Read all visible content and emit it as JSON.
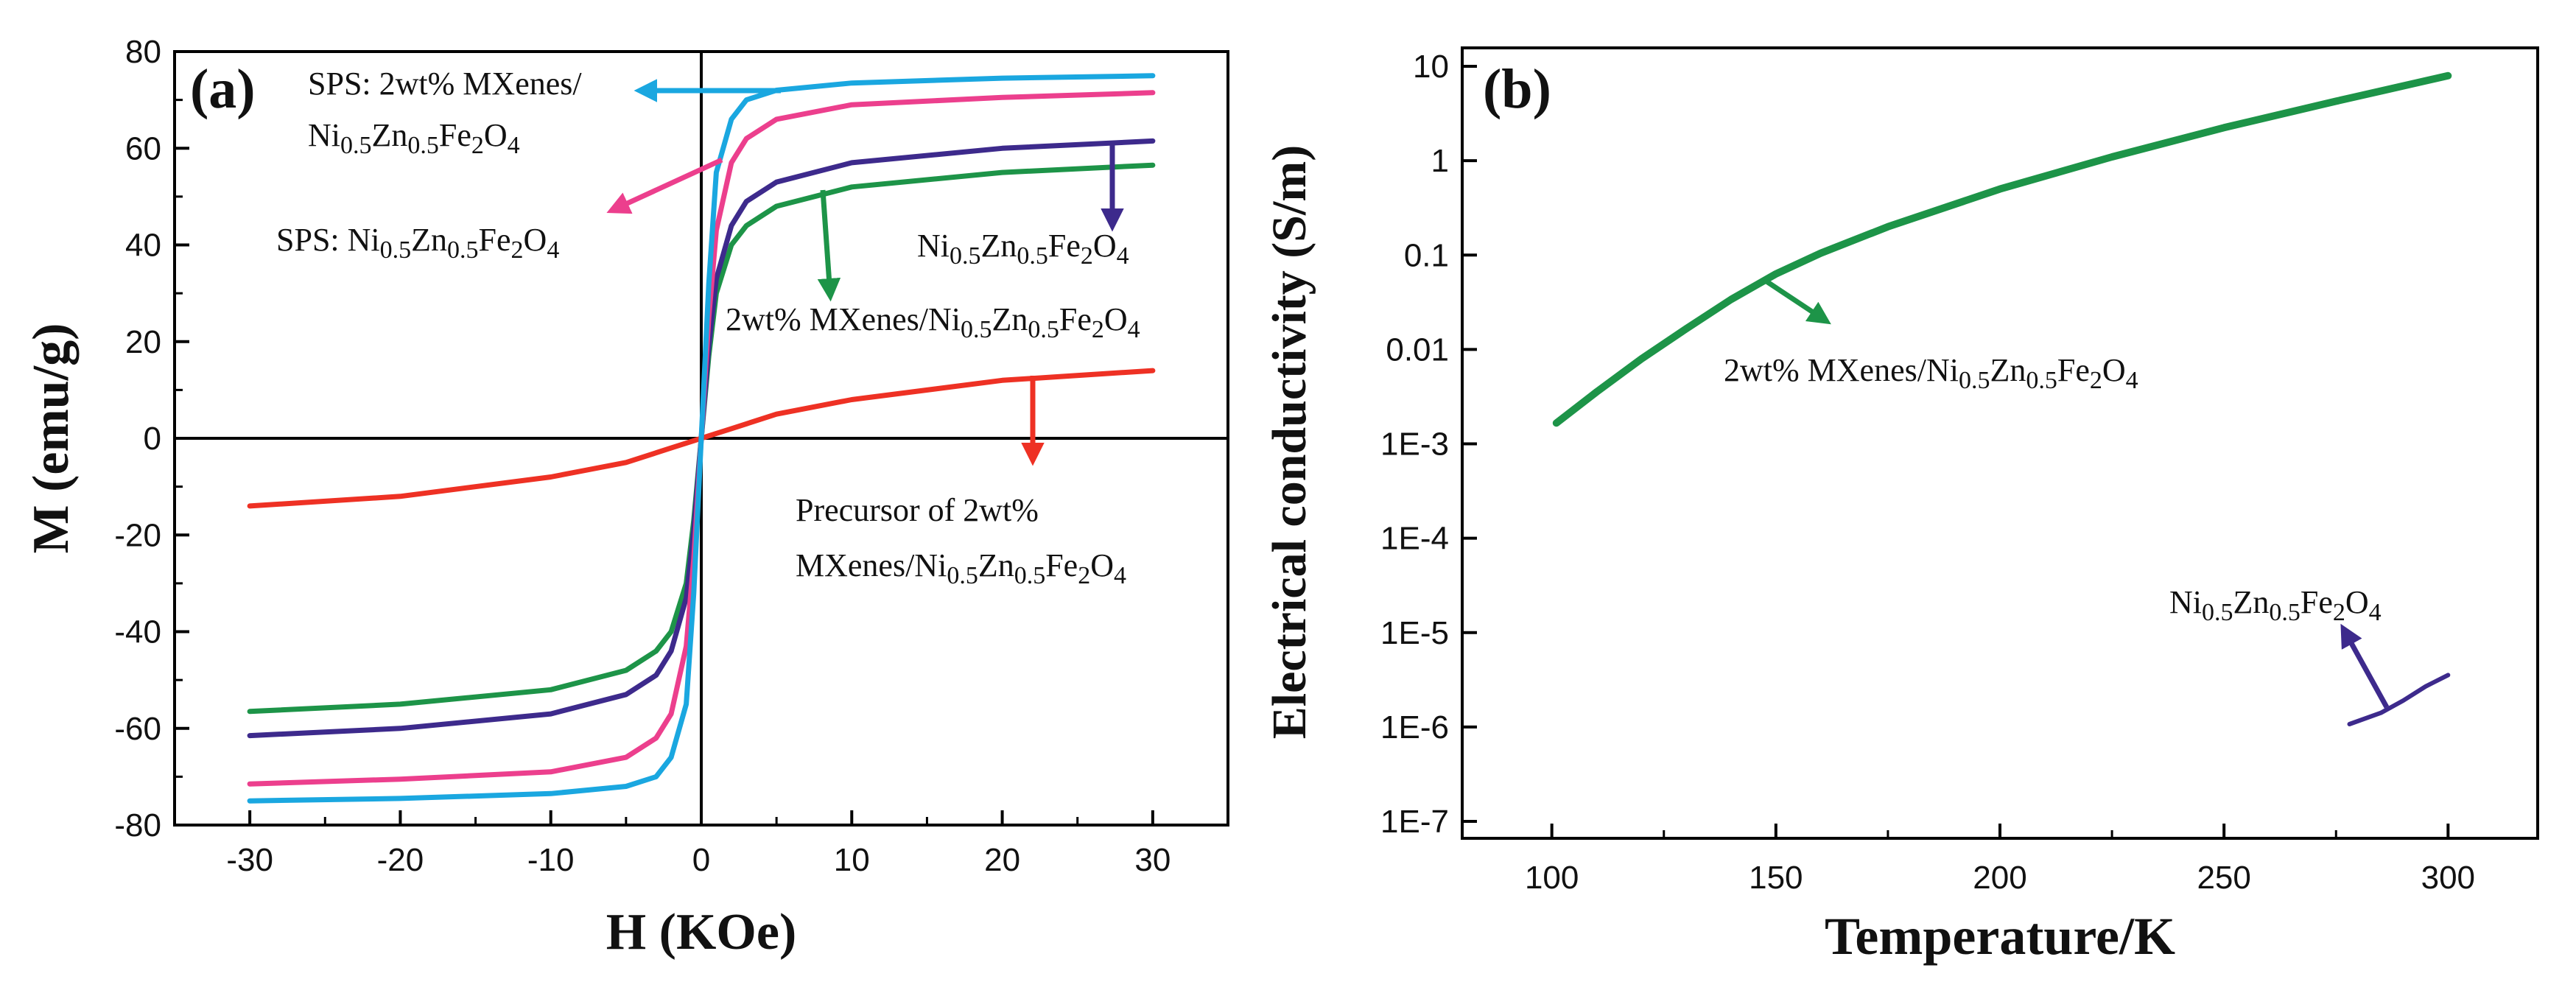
{
  "chart_data": [
    {
      "type": "line",
      "panel_label": "(a)",
      "xlabel": "H (KOe)",
      "ylabel": "M (emu/g)",
      "xlim": [
        -35,
        35
      ],
      "ylim": [
        -80,
        80
      ],
      "xticks": [
        -30,
        -20,
        -10,
        0,
        10,
        20,
        30
      ],
      "yticks": [
        -80,
        -60,
        -40,
        -20,
        0,
        20,
        40,
        60,
        80
      ],
      "series": [
        {
          "name": "SPS: 2wt% MXenes/Ni0.5Zn0.5Fe2O4",
          "color": "#1aa7e0",
          "x": [
            -30,
            -20,
            -10,
            -5,
            -3,
            -2,
            -1,
            -0.5,
            0,
            0.5,
            1,
            2,
            3,
            5,
            10,
            20,
            30
          ],
          "y": [
            -75,
            -74.5,
            -73.5,
            -72,
            -70,
            -66,
            -55,
            -32,
            0,
            32,
            55,
            66,
            70,
            72,
            73.5,
            74.5,
            75
          ]
        },
        {
          "name": "SPS: Ni0.5Zn0.5Fe2O4",
          "color": "#ec3f8d",
          "x": [
            -30,
            -20,
            -10,
            -5,
            -3,
            -2,
            -1,
            -0.5,
            0,
            0.5,
            1,
            2,
            3,
            5,
            10,
            20,
            30
          ],
          "y": [
            -71.5,
            -70.5,
            -69,
            -66,
            -62,
            -57,
            -43,
            -25,
            0,
            25,
            43,
            57,
            62,
            66,
            69,
            70.5,
            71.5
          ]
        },
        {
          "name": "Ni0.5Zn0.5Fe2O4",
          "color": "#3d2a8c",
          "x": [
            -30,
            -20,
            -10,
            -5,
            -3,
            -2,
            -1,
            -0.5,
            0,
            0.5,
            1,
            2,
            3,
            5,
            10,
            20,
            30
          ],
          "y": [
            -61.5,
            -60,
            -57,
            -53,
            -49,
            -44,
            -33,
            -19,
            0,
            19,
            33,
            44,
            49,
            53,
            57,
            60,
            61.5
          ]
        },
        {
          "name": "2wt% MXenes/Ni0.5Zn0.5Fe2O4",
          "color": "#1d9448",
          "x": [
            -30,
            -20,
            -10,
            -5,
            -3,
            -2,
            -1,
            -0.5,
            0,
            0.5,
            1,
            2,
            3,
            5,
            10,
            20,
            30
          ],
          "y": [
            -56.5,
            -55,
            -52,
            -48,
            -44,
            -40,
            -30,
            -17,
            0,
            17,
            30,
            40,
            44,
            48,
            52,
            55,
            56.5
          ]
        },
        {
          "name": "Precursor of 2wt% MXenes/Ni0.5Zn0.5Fe2O4",
          "color": "#ee3124",
          "x": [
            -30,
            -20,
            -10,
            -5,
            -2,
            -1,
            0,
            1,
            2,
            5,
            10,
            20,
            30
          ],
          "y": [
            -14,
            -12,
            -8,
            -5,
            -2,
            -1,
            0,
            1,
            2,
            5,
            8,
            12,
            14
          ]
        }
      ],
      "annotations": [
        {
          "lines": [
            [
              "SPS: 2wt% MXenes/"
            ],
            [
              "Ni",
              "0.5",
              "Zn",
              "0.5",
              "Fe",
              "2",
              "O",
              "4"
            ]
          ],
          "color": "#1aa7e0"
        },
        {
          "lines": [
            [
              "SPS: Ni",
              "0.5",
              "Zn",
              "0.5",
              "Fe",
              "2",
              "O",
              "4"
            ]
          ],
          "color": "#ec3f8d"
        },
        {
          "lines": [
            [
              "Ni",
              "0.5",
              "Zn",
              "0.5",
              "Fe",
              "2",
              "O",
              "4"
            ]
          ],
          "color": "#3d2a8c"
        },
        {
          "lines": [
            [
              "2wt% MXenes/Ni",
              "0.5",
              "Zn",
              "0.5",
              "Fe",
              "2",
              "O",
              "4"
            ]
          ],
          "color": "#1d9448"
        },
        {
          "lines": [
            [
              "Precursor of  2wt%"
            ],
            [
              "MXenes/Ni",
              "0.5",
              "Zn",
              "0.5",
              "Fe",
              "2",
              "O",
              "4"
            ]
          ],
          "color": "#ee3124"
        }
      ]
    },
    {
      "type": "line",
      "panel_label": "(b)",
      "xlabel": "Temperature/K",
      "ylabel": "Electrical conductivity (S/m)",
      "yscale": "log",
      "xlim": [
        80,
        320
      ],
      "ylim_exp": [
        -7,
        1
      ],
      "xticks": [
        100,
        150,
        200,
        250,
        300
      ],
      "yticks_exp": [
        1,
        0,
        -1,
        -2,
        -3,
        -4,
        -5,
        -6,
        -7
      ],
      "ytick_labels": [
        "10",
        "1",
        "0.1",
        "0.01",
        "1E-3",
        "1E-4",
        "1E-5",
        "1E-6",
        "1E-7"
      ],
      "series": [
        {
          "name": "2wt% MXenes/Ni0.5Zn0.5Fe2O4",
          "color": "#1d9448",
          "x": [
            101,
            110,
            120,
            130,
            140,
            150,
            160,
            175,
            200,
            225,
            250,
            275,
            300
          ],
          "log10_y": [
            -2.78,
            -2.45,
            -2.1,
            -1.78,
            -1.47,
            -1.2,
            -0.98,
            -0.7,
            -0.3,
            0.04,
            0.35,
            0.63,
            0.9
          ]
        },
        {
          "name": "Ni0.5Zn0.5Fe2O4",
          "color": "#3d2a8c",
          "x": [
            278,
            285,
            290,
            295,
            300
          ],
          "log10_y": [
            -5.97,
            -5.85,
            -5.72,
            -5.57,
            -5.45
          ]
        }
      ],
      "annotations": [
        {
          "lines": [
            [
              "2wt% MXenes/Ni",
              "0.5",
              "Zn",
              "0.5",
              "Fe",
              "2",
              "O",
              "4"
            ]
          ],
          "color": "#1d9448"
        },
        {
          "lines": [
            [
              "Ni",
              "0.5",
              "Zn",
              "0.5",
              "Fe",
              "2",
              "O",
              "4"
            ]
          ],
          "color": "#3d2a8c"
        }
      ]
    }
  ]
}
